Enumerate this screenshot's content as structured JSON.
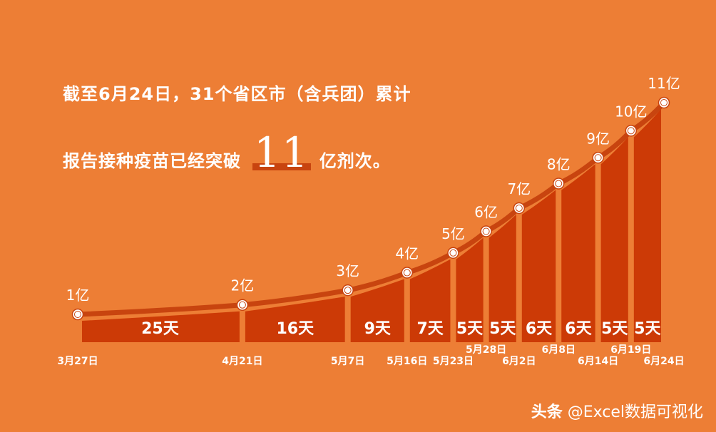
{
  "headline": {
    "line1": "截至6月24日，31个省区市（含兵团）累计",
    "line2_prefix": "报告接种疫苗已经突破",
    "highlight": "11",
    "line2_suffix": "亿剂次。"
  },
  "watermark": {
    "source": "头条",
    "handle": "@Excel数据可视化"
  },
  "colors": {
    "background": "#ED7E35",
    "area": "#CC3A06",
    "line": "#C8440F",
    "marker_fill": "#ffffff"
  },
  "chart_data": {
    "type": "area",
    "x": [
      "3月27日",
      "4月21日",
      "5月7日",
      "5月16日",
      "5月23日",
      "5月28日",
      "6月2日",
      "6月8日",
      "6月14日",
      "6月19日",
      "6月24日"
    ],
    "values": [
      1,
      2,
      3,
      4,
      5,
      6,
      7,
      8,
      9,
      10,
      11
    ],
    "point_labels": [
      "1亿",
      "2亿",
      "3亿",
      "4亿",
      "5亿",
      "6亿",
      "7亿",
      "8亿",
      "9亿",
      "10亿",
      "11亿"
    ],
    "interval_labels": [
      "25天",
      "16天",
      "9天",
      "7天",
      "5天",
      "5天",
      "6天",
      "6天",
      "5天",
      "5天"
    ],
    "x_scale": "time",
    "grid": false,
    "legend": "none"
  }
}
